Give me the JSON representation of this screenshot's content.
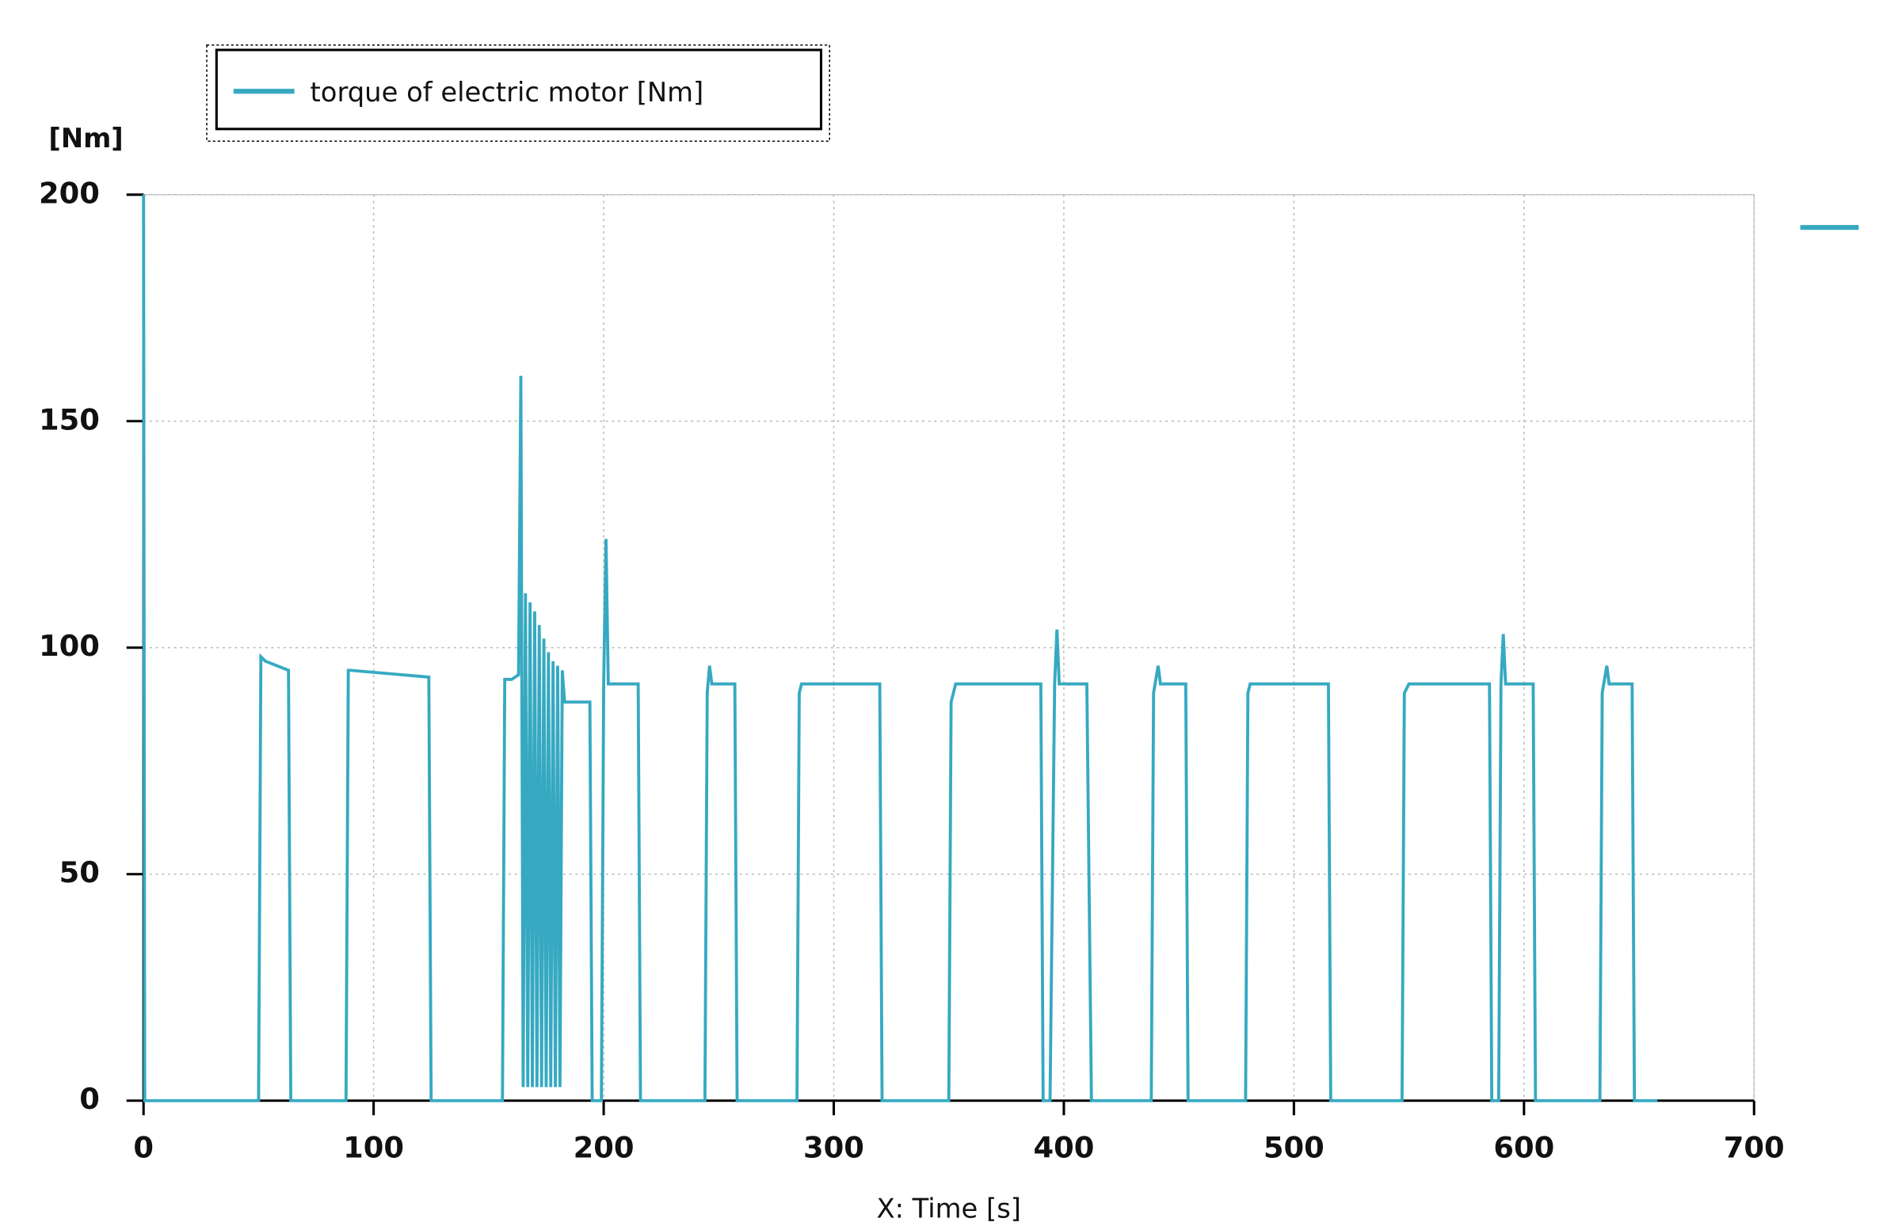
{
  "chart_data": {
    "type": "line",
    "y_label": "[Nm]",
    "x_label": "X: Time [s]",
    "xlim": [
      0,
      700
    ],
    "xticks": [
      0,
      100,
      200,
      300,
      400,
      500,
      600,
      700
    ],
    "ylim": [
      0,
      200
    ],
    "yticks": [
      0,
      50,
      100,
      150,
      200
    ],
    "grid": true,
    "series": [
      {
        "name": "torque of  electric motor [Nm]",
        "color": "#36a9c1",
        "x": [
          0,
          0.5,
          50,
          51,
          53,
          63,
          64,
          88,
          89,
          90,
          124,
          125,
          156,
          157,
          160,
          163,
          164,
          165,
          166,
          167,
          168,
          169,
          170,
          171,
          172,
          173,
          174,
          175,
          176,
          177,
          178,
          179,
          180,
          181,
          182,
          183,
          194,
          195,
          199,
          200,
          201,
          202,
          215,
          216,
          244,
          245,
          246,
          247,
          257,
          258,
          284,
          285,
          286,
          320,
          321,
          350,
          351,
          353,
          390,
          391,
          394,
          396,
          397,
          398,
          410,
          412,
          438,
          439,
          441,
          442,
          453,
          454,
          479,
          480,
          481,
          515,
          516,
          547,
          548,
          550,
          585,
          586,
          589,
          590,
          591,
          592,
          604,
          605,
          633,
          634,
          636,
          637,
          647,
          648,
          658
        ],
        "values": [
          200,
          0,
          0,
          98,
          97,
          95,
          0,
          0,
          95,
          95,
          93.5,
          0,
          0,
          93,
          93,
          94,
          160,
          3,
          112,
          3,
          110,
          3,
          108,
          3,
          105,
          3,
          102,
          3,
          99,
          3,
          97,
          3,
          96,
          3,
          95,
          88,
          88,
          0,
          0,
          92,
          124,
          92,
          92,
          0,
          0,
          90,
          96,
          92,
          92,
          0,
          0,
          90,
          92,
          92,
          0,
          0,
          88,
          92,
          92,
          0,
          0,
          92,
          104,
          92,
          92,
          0,
          0,
          90,
          96,
          92,
          92,
          0,
          0,
          90,
          92,
          92,
          0,
          0,
          90,
          92,
          92,
          0,
          0,
          92,
          103,
          92,
          92,
          0,
          0,
          90,
          96,
          92,
          92,
          0,
          0
        ]
      }
    ]
  }
}
